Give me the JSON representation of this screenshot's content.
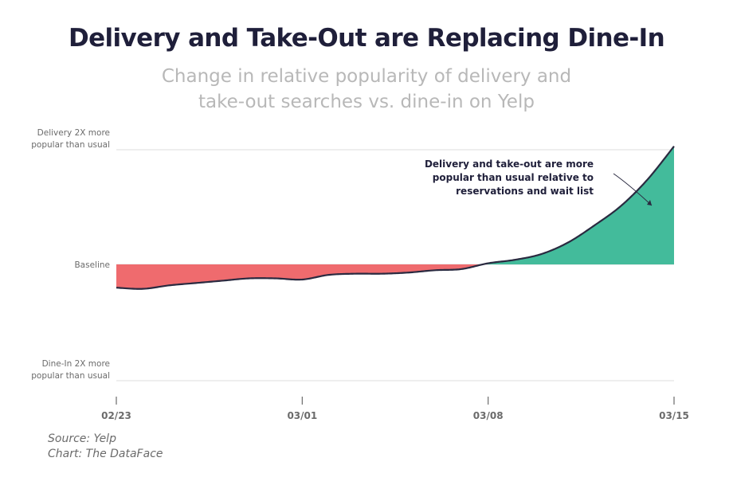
{
  "title": "Delivery and Take-Out are Replacing Dine-In",
  "subtitle_line1": "Change in relative popularity of delivery and",
  "subtitle_line2": "take-out searches vs. dine-in on Yelp",
  "source_line1": "Source: Yelp",
  "source_line2": "Chart: The DataFace",
  "colors": {
    "positive_fill": "#43bb9b",
    "negative_fill": "#ef6b6e",
    "line": "#2a2a40",
    "grid": "#dcdcdc"
  },
  "chart_data": {
    "type": "area",
    "title": "Delivery and Take-Out are Replacing Dine-In",
    "subtitle": "Change in relative popularity of delivery and take-out searches vs. dine-in on Yelp",
    "y_axis_labels": [
      {
        "value": 1,
        "lines": [
          "Delivery 2X more",
          "popular than usual"
        ]
      },
      {
        "value": 0,
        "lines": [
          "Baseline"
        ]
      },
      {
        "value": -1,
        "lines": [
          "Dine-In 2X more",
          "popular than usual"
        ]
      }
    ],
    "ylim": [
      -1,
      1
    ],
    "x_ticks": [
      {
        "x": 0,
        "label": "02/23"
      },
      {
        "x": 7,
        "label": "03/01"
      },
      {
        "x": 14,
        "label": "03/08"
      },
      {
        "x": 21,
        "label": "03/15"
      }
    ],
    "xlim": [
      0,
      21
    ],
    "grid": true,
    "series": [
      {
        "x": [
          0,
          1,
          2,
          3,
          4,
          5,
          6,
          7,
          8,
          9,
          10,
          11,
          12,
          13,
          14,
          15,
          16,
          17,
          18,
          19,
          20,
          21
        ],
        "values": [
          -0.2,
          -0.21,
          -0.18,
          -0.16,
          -0.14,
          -0.12,
          -0.12,
          -0.13,
          -0.09,
          -0.08,
          -0.08,
          -0.07,
          -0.05,
          -0.04,
          0.01,
          0.04,
          0.09,
          0.19,
          0.34,
          0.51,
          0.74,
          1.03
        ]
      }
    ],
    "annotation": {
      "lines": [
        "Delivery and take-out are more",
        "popular than usual relative to",
        "reservations and wait list"
      ]
    }
  }
}
